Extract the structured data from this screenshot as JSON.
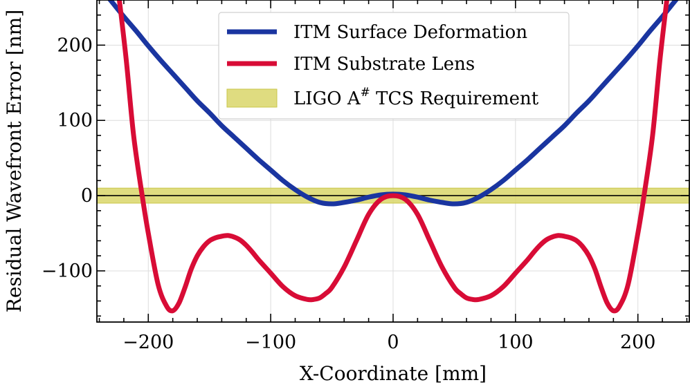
{
  "chart_data": {
    "type": "line",
    "xlabel": "X-Coordinate [mm]",
    "ylabel": "Residual Wavefront Error [nm]",
    "xlim": [
      -242,
      242
    ],
    "ylim": [
      -168,
      260
    ],
    "xticks": [
      -200,
      -100,
      0,
      100,
      200
    ],
    "xtick_labels": [
      "−200",
      "−100",
      "0",
      "100",
      "200"
    ],
    "yticks": [
      -100,
      0,
      100,
      200
    ],
    "ytick_labels": [
      "−100",
      "0",
      "100",
      "200"
    ],
    "grid": true,
    "legend_position": "top-center",
    "band": {
      "name": "LIGO A",
      "name_sup": "#",
      "name_suffix": " TCS Requirement",
      "y_min": -10,
      "y_max": 10,
      "color": "#d9d66a"
    },
    "zero_line": 0,
    "series": [
      {
        "name": "ITM Surface Deformation",
        "color": "#1a35a0",
        "x": [
          -242,
          -230,
          -220,
          -210,
          -200,
          -190,
          -180,
          -170,
          -160,
          -150,
          -140,
          -130,
          -120,
          -110,
          -100,
          -90,
          -80,
          -70,
          -60,
          -50,
          -40,
          -30,
          -20,
          -10,
          0,
          10,
          20,
          30,
          40,
          50,
          60,
          70,
          80,
          90,
          100,
          110,
          120,
          130,
          140,
          150,
          160,
          170,
          180,
          190,
          200,
          210,
          220,
          230,
          242
        ],
        "y": [
          282,
          258,
          238,
          219,
          199,
          180,
          162,
          144,
          126,
          110,
          93,
          78,
          63,
          48,
          34,
          20,
          8,
          -2,
          -9,
          -11,
          -9,
          -6,
          -2,
          1,
          2,
          1,
          -2,
          -6,
          -9,
          -11,
          -9,
          -2,
          8,
          20,
          34,
          48,
          63,
          78,
          93,
          110,
          126,
          144,
          162,
          180,
          199,
          219,
          238,
          258,
          282
        ]
      },
      {
        "name": "ITM Substrate Lens",
        "color": "#d80c36",
        "x": [
          -224,
          -218,
          -212,
          -205,
          -200,
          -192,
          -185,
          -180,
          -175,
          -170,
          -165,
          -160,
          -155,
          -150,
          -145,
          -140,
          -135,
          -130,
          -125,
          -120,
          -115,
          -110,
          -100,
          -90,
          -80,
          -70,
          -65,
          -60,
          -55,
          -50,
          -40,
          -30,
          -20,
          -10,
          0,
          10,
          20,
          30,
          40,
          50,
          55,
          60,
          65,
          70,
          80,
          90,
          100,
          110,
          115,
          120,
          125,
          130,
          135,
          140,
          145,
          150,
          155,
          160,
          165,
          170,
          175,
          180,
          185,
          192,
          200,
          205,
          212,
          218,
          224
        ],
        "y": [
          265,
          180,
          80,
          0,
          -50,
          -118,
          -147,
          -153,
          -143,
          -122,
          -98,
          -80,
          -68,
          -60,
          -56,
          -54,
          -53,
          -55,
          -59,
          -66,
          -75,
          -85,
          -103,
          -121,
          -133,
          -138,
          -138,
          -136,
          -130,
          -122,
          -95,
          -60,
          -25,
          -5,
          0,
          -5,
          -25,
          -60,
          -95,
          -122,
          -130,
          -136,
          -138,
          -138,
          -133,
          -121,
          -103,
          -85,
          -75,
          -66,
          -59,
          -55,
          -53,
          -54,
          -56,
          -60,
          -68,
          -80,
          -98,
          -122,
          -143,
          -153,
          -147,
          -118,
          -50,
          0,
          80,
          180,
          265
        ]
      }
    ]
  }
}
